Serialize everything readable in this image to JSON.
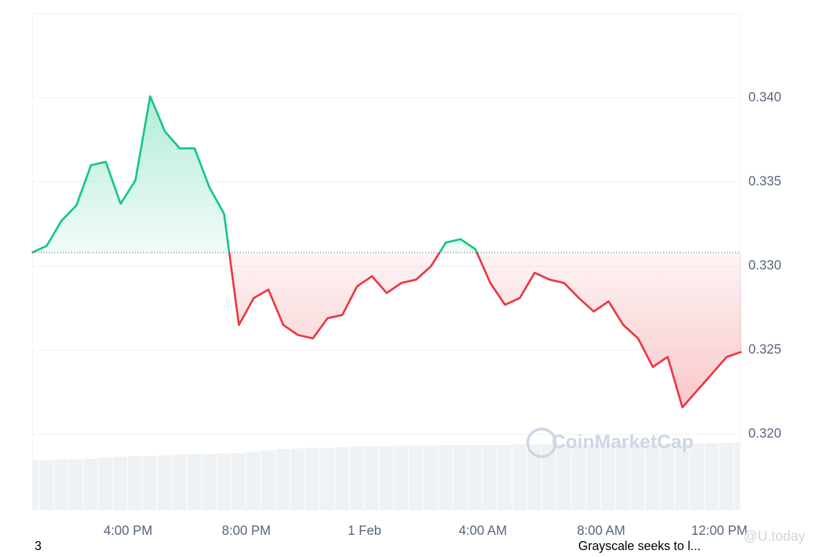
{
  "chart_data": {
    "type": "line",
    "x": [
      12.75,
      13.25,
      13.75,
      14.25,
      14.75,
      15.25,
      15.75,
      16.25,
      16.75,
      17.25,
      17.75,
      18.25,
      18.75,
      19.25,
      19.75,
      20.25,
      20.75,
      21.25,
      21.75,
      22.25,
      22.75,
      23.25,
      23.75,
      24.25,
      24.75,
      25.25,
      25.75,
      26.25,
      26.75,
      27.25,
      27.75,
      28.25,
      28.75,
      29.25,
      29.75,
      30.25,
      30.75,
      31.25,
      31.75,
      32.25,
      32.75,
      33.25,
      33.75,
      34.25,
      34.75,
      35.25,
      35.75,
      36.25,
      36.75
    ],
    "series": [
      {
        "values": [
          0.3308,
          0.3312,
          0.3327,
          0.3336,
          0.336,
          0.3362,
          0.3337,
          0.3351,
          0.3401,
          0.338,
          0.337,
          0.337,
          0.3347,
          0.3331,
          0.3265,
          0.3281,
          0.3286,
          0.3265,
          0.3259,
          0.3257,
          0.3269,
          0.3271,
          0.3288,
          0.3294,
          0.3284,
          0.329,
          0.3292,
          0.33,
          0.3314,
          0.3316,
          0.331,
          0.329,
          0.3277,
          0.3281,
          0.3296,
          0.3292,
          0.329,
          0.3281,
          0.3273,
          0.3279,
          0.3265,
          0.3257,
          0.324,
          0.3246,
          0.3216,
          0.3226,
          0.3236,
          0.3246,
          0.3249
        ],
        "color_up": "#16c784",
        "color_down": "#ea3943"
      },
      {
        "axis": "y2",
        "color": "#eff2f5",
        "values": [
          72,
          72,
          73,
          73,
          74,
          76,
          77,
          78,
          78,
          79,
          80,
          81,
          81,
          82,
          82,
          84,
          86,
          88,
          89,
          90,
          90,
          91,
          92,
          92,
          92,
          93,
          93,
          93,
          94,
          94,
          94,
          94,
          94,
          95,
          95,
          95,
          95,
          95,
          95,
          95,
          96,
          96,
          96,
          96,
          96,
          96,
          96,
          97,
          97
        ]
      }
    ],
    "baseline": 0.3308,
    "xlim": [
      12.77,
      36.7
    ],
    "xticks": [
      {
        "value": 16,
        "label": "4:00 PM"
      },
      {
        "value": 20,
        "label": "8:00 PM"
      },
      {
        "value": 24,
        "label": "1 Feb"
      },
      {
        "value": 28,
        "label": "4:00 AM"
      },
      {
        "value": 32,
        "label": "8:00 AM"
      },
      {
        "value": 36,
        "label": "12:00 PM"
      }
    ],
    "ylim": [
      0.3155,
      0.345
    ],
    "yticks": [
      {
        "value": 0.32,
        "label": "0.320"
      },
      0.325,
      {
        "value": 0.33,
        "label": "0.330"
      },
      0.335,
      {
        "value": 0.34,
        "label": "0.340"
      }
    ],
    "y2lim": [
      0,
      100
    ],
    "grid": true,
    "watermark": "CoinMarketCap",
    "footer_left": "3",
    "footer_news": "Grayscale seeks to l...",
    "source_mark": "@U.today"
  }
}
